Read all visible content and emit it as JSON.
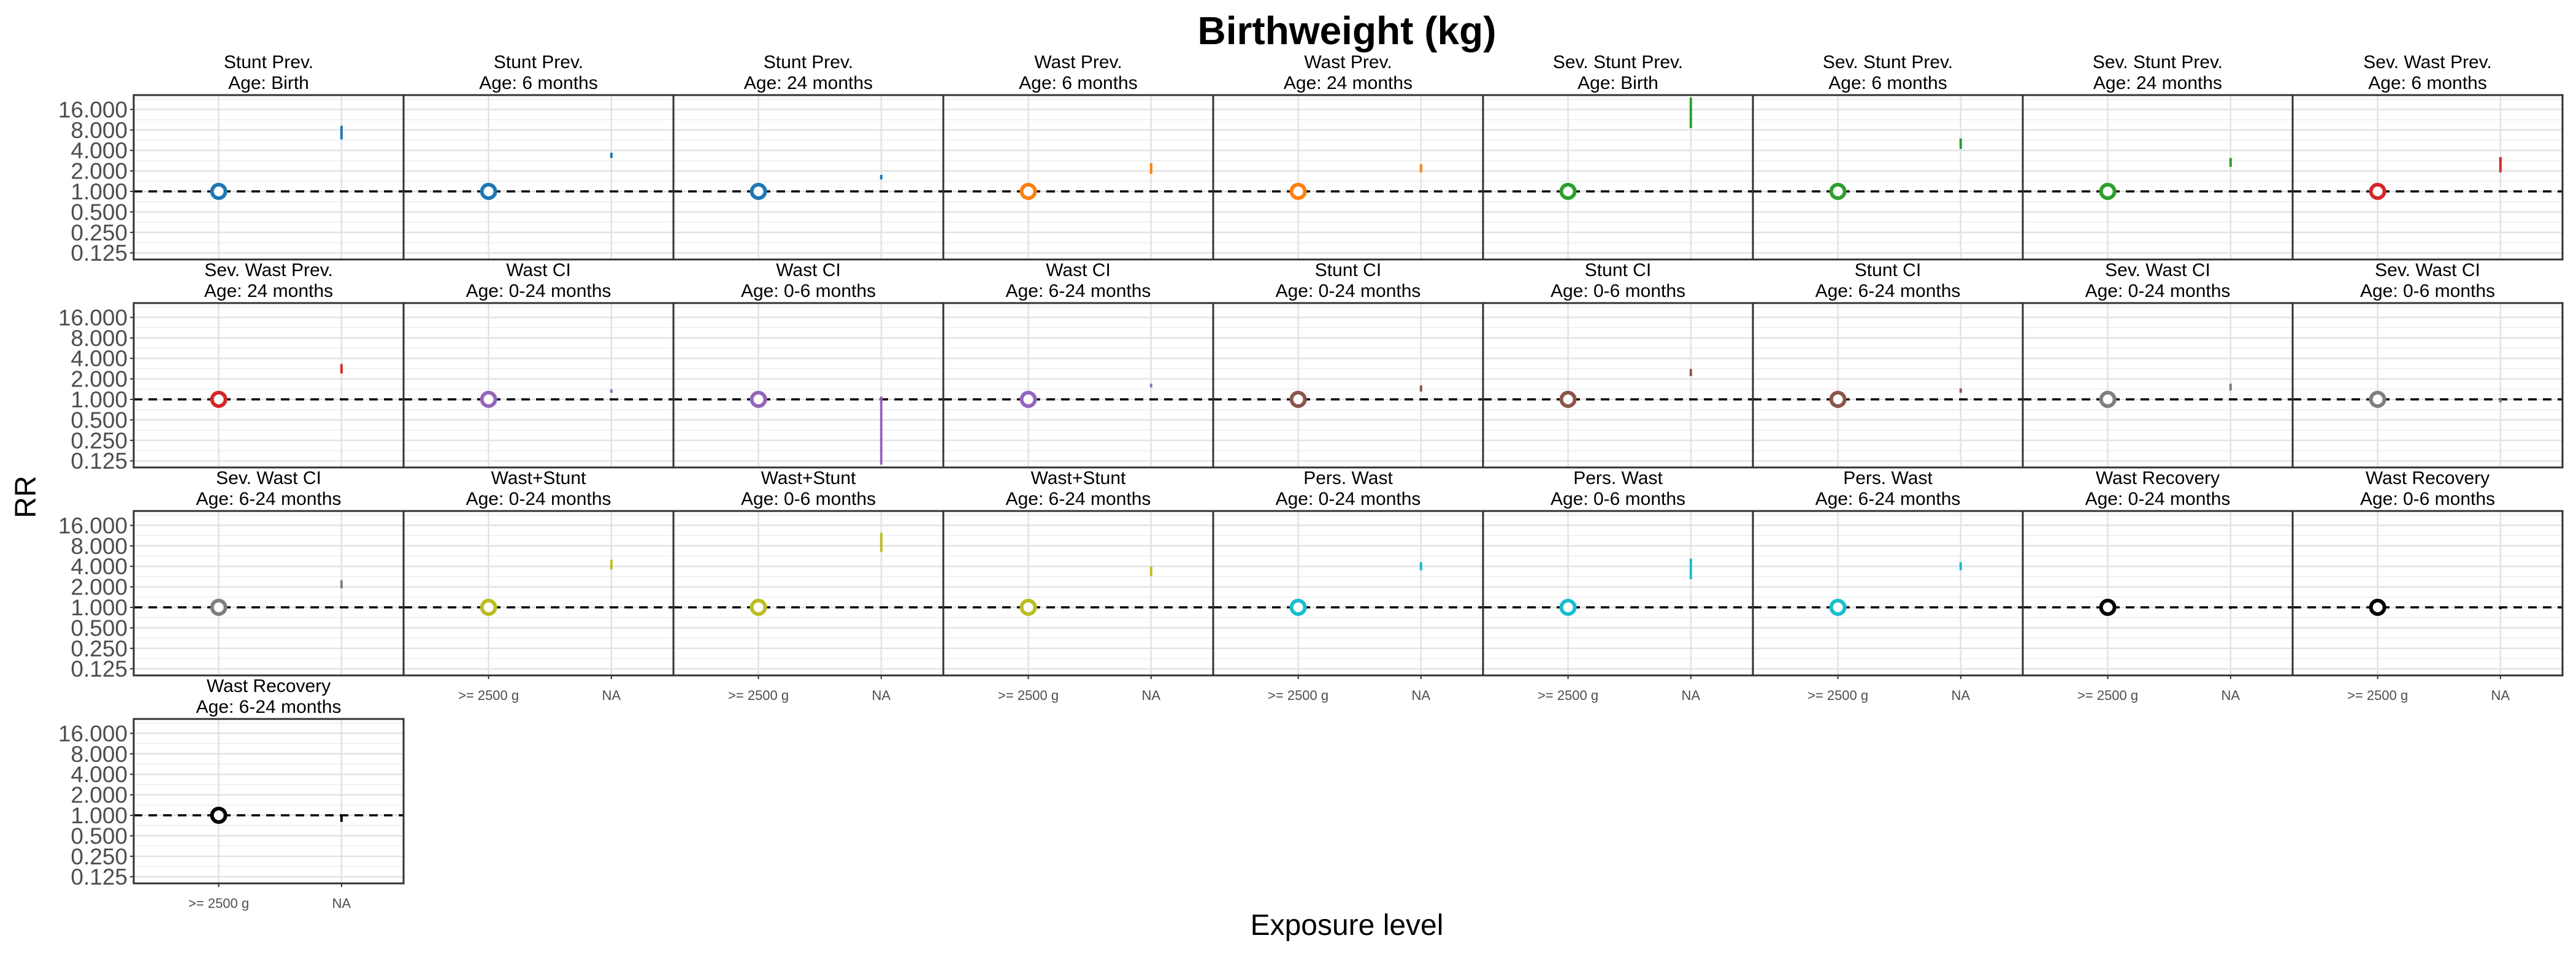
{
  "chart_data": {
    "type": "scatter",
    "title": "Birthweight (kg)",
    "xlabel": "Exposure level",
    "ylabel": "RR",
    "categories": [
      ">= 2500 g",
      "NA"
    ],
    "y_scale": "log2",
    "ylim": [
      0.1,
      26
    ],
    "yticks": [
      "0.125",
      "0.250",
      "0.500",
      "1.000",
      "2.000",
      "4.000",
      "8.000",
      "16.000"
    ],
    "reference_line": 1,
    "grid": true,
    "panels": [
      {
        "outcome": "Stunt Prev.",
        "age": "Age: Birth",
        "color": "#1f77b4",
        "ref_rr": 1,
        "na_rr": 7.0,
        "na_lower": 5.8,
        "na_upper": 9.2
      },
      {
        "outcome": "Stunt Prev.",
        "age": "Age: 6 months",
        "color": "#1f77b4",
        "ref_rr": 1,
        "na_rr": 3.4,
        "na_lower": 3.1,
        "na_upper": 3.7
      },
      {
        "outcome": "Stunt Prev.",
        "age": "Age: 24 months",
        "color": "#1f77b4",
        "ref_rr": 1,
        "na_rr": 1.6,
        "na_lower": 1.5,
        "na_upper": 1.75
      },
      {
        "outcome": "Wast Prev.",
        "age": "Age: 6 months",
        "color": "#ff7f0e",
        "ref_rr": 1,
        "na_rr": 2.2,
        "na_lower": 1.8,
        "na_upper": 2.6
      },
      {
        "outcome": "Wast Prev.",
        "age": "Age: 24 months",
        "color": "#ff7f0e",
        "ref_rr": 1,
        "na_rr": 2.2,
        "na_lower": 1.9,
        "na_upper": 2.5
      },
      {
        "outcome": "Sev. Stunt Prev.",
        "age": "Age: Birth",
        "color": "#2ca02c",
        "ref_rr": 1,
        "na_rr": 14.0,
        "na_lower": 8.5,
        "na_upper": 24.0
      },
      {
        "outcome": "Sev. Stunt Prev.",
        "age": "Age: 6 months",
        "color": "#2ca02c",
        "ref_rr": 1,
        "na_rr": 5.0,
        "na_lower": 4.2,
        "na_upper": 6.0
      },
      {
        "outcome": "Sev. Stunt Prev.",
        "age": "Age: 24 months",
        "color": "#2ca02c",
        "ref_rr": 1,
        "na_rr": 2.6,
        "na_lower": 2.3,
        "na_upper": 3.1
      },
      {
        "outcome": "Sev. Wast Prev.",
        "age": "Age: 6 months",
        "color": "#d62728",
        "ref_rr": 1,
        "na_rr": 2.4,
        "na_lower": 1.9,
        "na_upper": 3.2
      },
      {
        "outcome": "Sev. Wast Prev.",
        "age": "Age: 24 months",
        "color": "#d62728",
        "ref_rr": 1,
        "na_rr": 2.8,
        "na_lower": 2.4,
        "na_upper": 3.3
      },
      {
        "outcome": "Wast CI",
        "age": "Age: 0-24 months",
        "color": "#9467bd",
        "ref_rr": 1,
        "na_rr": 1.3,
        "na_lower": 1.25,
        "na_upper": 1.4
      },
      {
        "outcome": "Wast CI",
        "age": "Age: 0-6 months",
        "color": "#9467bd",
        "ref_rr": 1,
        "na_rr": 0.35,
        "na_lower": 0.11,
        "na_upper": 1.1
      },
      {
        "outcome": "Wast CI",
        "age": "Age: 6-24 months",
        "color": "#9467bd",
        "ref_rr": 1,
        "na_rr": 1.6,
        "na_lower": 1.5,
        "na_upper": 1.7
      },
      {
        "outcome": "Stunt CI",
        "age": "Age: 0-24 months",
        "color": "#8c564b",
        "ref_rr": 1,
        "na_rr": 1.45,
        "na_lower": 1.3,
        "na_upper": 1.6
      },
      {
        "outcome": "Stunt CI",
        "age": "Age: 0-6 months",
        "color": "#8c564b",
        "ref_rr": 1,
        "na_rr": 2.5,
        "na_lower": 2.2,
        "na_upper": 2.8
      },
      {
        "outcome": "Stunt CI",
        "age": "Age: 6-24 months",
        "color": "#8c564b",
        "ref_rr": 1,
        "na_rr": 1.35,
        "na_lower": 1.25,
        "na_upper": 1.45
      },
      {
        "outcome": "Sev. Wast CI",
        "age": "Age: 0-24 months",
        "color": "#7f7f7f",
        "ref_rr": 1,
        "na_rr": 1.5,
        "na_lower": 1.35,
        "na_upper": 1.7
      },
      {
        "outcome": "Sev. Wast CI",
        "age": "Age: 0-6 months",
        "color": "#7f7f7f",
        "ref_rr": 1,
        "na_rr": 0.95,
        "na_lower": 0.9,
        "na_upper": 1.02
      },
      {
        "outcome": "Sev. Wast CI",
        "age": "Age: 6-24 months",
        "color": "#7f7f7f",
        "ref_rr": 1,
        "na_rr": 2.2,
        "na_lower": 1.9,
        "na_upper": 2.5
      },
      {
        "outcome": "Wast+Stunt",
        "age": "Age: 0-24 months",
        "color": "#bcbd22",
        "ref_rr": 1,
        "na_rr": 4.2,
        "na_lower": 3.6,
        "na_upper": 5.0
      },
      {
        "outcome": "Wast+Stunt",
        "age": "Age: 0-6 months",
        "color": "#bcbd22",
        "ref_rr": 1,
        "na_rr": 9.0,
        "na_lower": 6.5,
        "na_upper": 12.5
      },
      {
        "outcome": "Wast+Stunt",
        "age": "Age: 6-24 months",
        "color": "#bcbd22",
        "ref_rr": 1,
        "na_rr": 3.4,
        "na_lower": 2.9,
        "na_upper": 4.0
      },
      {
        "outcome": "Pers. Wast",
        "age": "Age: 0-24 months",
        "color": "#17becf",
        "ref_rr": 1,
        "na_rr": 4.0,
        "na_lower": 3.5,
        "na_upper": 4.6
      },
      {
        "outcome": "Pers. Wast",
        "age": "Age: 0-6 months",
        "color": "#17becf",
        "ref_rr": 1,
        "na_rr": 3.6,
        "na_lower": 2.6,
        "na_upper": 5.2
      },
      {
        "outcome": "Pers. Wast",
        "age": "Age: 6-24 months",
        "color": "#17becf",
        "ref_rr": 1,
        "na_rr": 4.0,
        "na_lower": 3.5,
        "na_upper": 4.6
      },
      {
        "outcome": "Wast Recovery",
        "age": "Age: 0-24 months",
        "color": "#000000",
        "ref_rr": 1,
        "na_rr": 0.98,
        "na_lower": 0.95,
        "na_upper": 1.02
      },
      {
        "outcome": "Wast Recovery",
        "age": "Age: 0-6 months",
        "color": "#000000",
        "ref_rr": 1,
        "na_rr": 0.97,
        "na_lower": 0.94,
        "na_upper": 1.01
      },
      {
        "outcome": "Wast Recovery",
        "age": "Age: 6-24 months",
        "color": "#000000",
        "ref_rr": 1,
        "na_rr": 0.88,
        "na_lower": 0.8,
        "na_upper": 0.97
      }
    ]
  }
}
